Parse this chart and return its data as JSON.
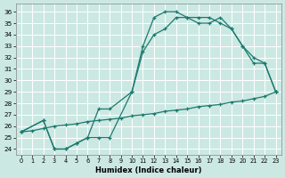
{
  "xlabel": "Humidex (Indice chaleur)",
  "bg_color": "#cce8e3",
  "grid_color": "#b8d8d4",
  "line_color": "#1a7a6e",
  "xlim": [
    -0.5,
    23.5
  ],
  "ylim": [
    23.5,
    36.7
  ],
  "xticks": [
    0,
    1,
    2,
    3,
    4,
    5,
    6,
    7,
    8,
    9,
    10,
    11,
    12,
    13,
    14,
    15,
    16,
    17,
    18,
    19,
    20,
    21,
    22,
    23
  ],
  "yticks": [
    24,
    25,
    26,
    27,
    28,
    29,
    30,
    31,
    32,
    33,
    34,
    35,
    36
  ],
  "line_bot_x": [
    0,
    1,
    2,
    3,
    4,
    5,
    6,
    7,
    8,
    9,
    10,
    11,
    12,
    13,
    14,
    15,
    16,
    17,
    18,
    19,
    20,
    21,
    22,
    23
  ],
  "line_bot_y": [
    25.5,
    25.6,
    25.8,
    26.0,
    26.1,
    26.2,
    26.4,
    26.5,
    26.6,
    26.7,
    26.9,
    27.0,
    27.1,
    27.3,
    27.4,
    27.5,
    27.7,
    27.8,
    27.9,
    28.1,
    28.2,
    28.4,
    28.6,
    29.0
  ],
  "line_mid_x": [
    0,
    2,
    3,
    4,
    5,
    6,
    7,
    8,
    10,
    11,
    12,
    13,
    14,
    15,
    16,
    17,
    18,
    19,
    20,
    21,
    22,
    23
  ],
  "line_mid_y": [
    25.5,
    26.5,
    24.0,
    24.0,
    24.5,
    25.0,
    27.5,
    27.5,
    29.0,
    32.5,
    34.0,
    34.5,
    35.5,
    35.5,
    35.5,
    35.5,
    35.0,
    34.5,
    33.0,
    31.5,
    31.5,
    29.0
  ],
  "line_top_x": [
    0,
    2,
    3,
    4,
    5,
    6,
    7,
    8,
    10,
    11,
    12,
    13,
    14,
    15,
    16,
    17,
    18,
    19,
    20,
    21,
    22,
    23
  ],
  "line_top_y": [
    25.5,
    26.5,
    24.0,
    24.0,
    24.5,
    25.0,
    25.0,
    25.0,
    29.0,
    33.0,
    35.5,
    36.0,
    36.0,
    35.5,
    35.0,
    35.0,
    35.5,
    34.5,
    33.0,
    32.0,
    31.5,
    29.0
  ]
}
